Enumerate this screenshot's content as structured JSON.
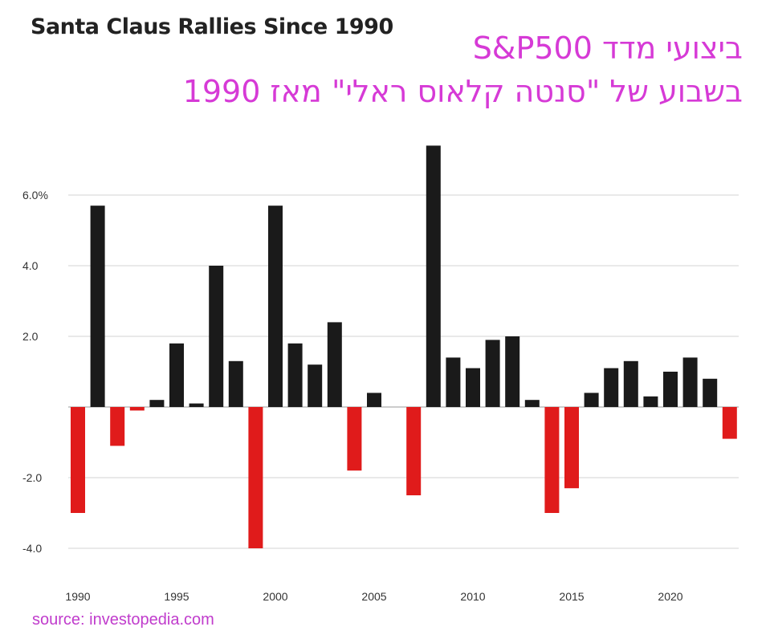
{
  "chart_data": {
    "type": "bar",
    "title": "Santa Claus Rallies Since 1990",
    "annotation_line1": "ביצועי מדד S&P500",
    "annotation_line2": "בשבוע של \"סנטה קלאוס ראלי\" מאז 1990",
    "source": "source:  investopedia.com",
    "xlabel": "",
    "ylabel": "",
    "ylim": [
      -4.5,
      7.5
    ],
    "yticks": [
      {
        "v": 6,
        "label": "6.0%"
      },
      {
        "v": 4,
        "label": "4.0"
      },
      {
        "v": 2,
        "label": "2.0"
      },
      {
        "v": -2,
        "label": "-2.0"
      },
      {
        "v": -4,
        "label": "-4.0"
      }
    ],
    "xticks": [
      "1990",
      "1995",
      "2000",
      "2005",
      "2010",
      "2015",
      "2020"
    ],
    "grid": true,
    "colors": {
      "positive": "#1a1a1a",
      "negative": "#e01b1b"
    },
    "categories": [
      1990,
      1991,
      1992,
      1993,
      1994,
      1995,
      1996,
      1997,
      1998,
      1999,
      2000,
      2001,
      2002,
      2003,
      2004,
      2005,
      2006,
      2007,
      2008,
      2009,
      2010,
      2011,
      2012,
      2013,
      2014,
      2015,
      2016,
      2017,
      2018,
      2019,
      2020,
      2021,
      2022,
      2023
    ],
    "values": [
      -3.0,
      5.7,
      -1.1,
      -0.1,
      0.2,
      1.8,
      0.1,
      4.0,
      1.3,
      -4.0,
      5.7,
      1.8,
      1.2,
      2.4,
      -1.8,
      0.4,
      0.0,
      -2.5,
      7.4,
      1.4,
      1.1,
      1.9,
      2.0,
      0.2,
      -3.0,
      -2.3,
      0.4,
      1.1,
      1.3,
      0.3,
      1.0,
      1.4,
      0.8,
      -0.9
    ]
  }
}
